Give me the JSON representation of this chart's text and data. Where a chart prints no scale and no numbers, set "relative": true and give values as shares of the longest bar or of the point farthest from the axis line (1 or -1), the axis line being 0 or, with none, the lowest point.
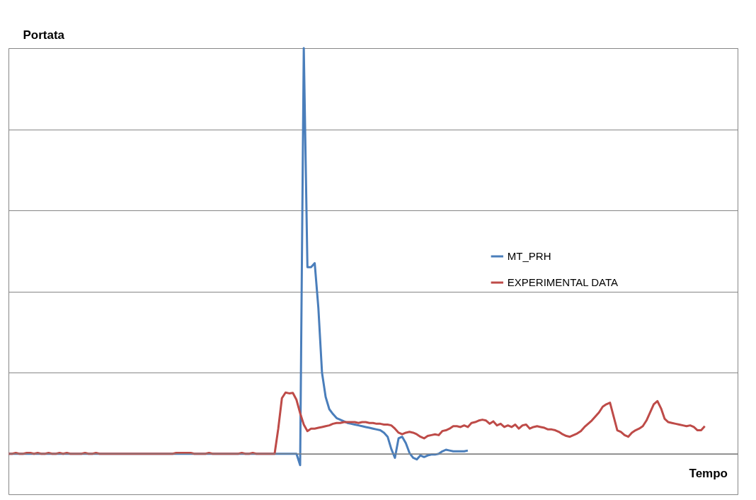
{
  "chart_data": {
    "type": "line",
    "relative": true,
    "xlabel": "Tempo",
    "ylabel": "Portata",
    "grid": "y",
    "legend": "right",
    "categories": [
      null,
      null,
      null,
      null,
      null,
      null,
      null,
      null,
      null,
      null,
      null,
      null,
      null,
      null,
      null,
      null,
      null,
      null,
      null,
      null,
      null,
      null,
      null,
      null,
      null,
      null,
      null,
      null,
      null,
      null,
      null,
      null,
      null,
      null,
      null,
      null,
      null,
      null,
      null,
      null,
      null,
      null,
      null,
      null,
      null,
      null,
      null,
      null,
      null,
      null,
      null,
      null,
      null,
      null,
      null,
      null,
      null,
      null,
      null,
      null,
      null,
      null,
      null,
      null,
      null,
      null,
      null,
      null,
      null,
      null,
      null,
      null,
      null,
      null,
      null,
      null,
      null,
      null,
      null,
      null,
      null,
      null,
      null,
      null,
      null,
      null,
      null,
      null,
      null,
      null,
      null,
      null,
      null,
      null,
      null,
      null,
      null,
      null,
      null,
      null,
      null,
      null,
      null,
      null,
      null,
      null,
      null,
      null,
      null,
      null,
      null,
      null,
      null,
      null,
      null,
      null,
      null,
      null,
      null,
      null,
      null,
      null,
      null,
      null,
      null,
      null,
      null,
      null,
      null,
      null,
      null,
      null,
      null,
      null,
      null,
      null,
      null,
      null,
      null,
      null,
      null,
      null,
      null,
      null,
      null,
      null,
      null,
      null,
      null,
      null,
      null,
      null,
      null,
      null,
      null,
      null,
      null,
      null,
      null,
      null,
      null,
      null,
      null,
      null,
      null,
      null,
      null,
      null,
      null,
      null,
      null,
      null,
      null,
      null,
      null,
      null,
      null,
      null,
      null,
      null,
      null,
      null,
      null,
      null,
      null,
      null,
      null,
      null,
      null,
      null,
      null,
      null,
      null,
      null,
      null,
      null,
      null,
      null,
      null,
      null,
      null
    ],
    "series": [
      {
        "name": "MT_PRH",
        "color": "#4a7ebb",
        "values": [
          0,
          0,
          0,
          0,
          0,
          0,
          0,
          0,
          0,
          0,
          0,
          0,
          0,
          0,
          0,
          0,
          0,
          0,
          0,
          0,
          0,
          0,
          0,
          0,
          0,
          0,
          0,
          0,
          0,
          0,
          0,
          0,
          0,
          0,
          0,
          0,
          0,
          0,
          0,
          0,
          0,
          0,
          0,
          0,
          0,
          0,
          0,
          0,
          0,
          0,
          0,
          0,
          0,
          0,
          0,
          0,
          0,
          0,
          0,
          0,
          0,
          0,
          0,
          0,
          0,
          0,
          0,
          0,
          0,
          0,
          0,
          0,
          0,
          0,
          0,
          0,
          0,
          0,
          0,
          0,
          -0.028,
          1,
          0.46,
          0.46,
          0.47,
          0.36,
          0.2,
          0.14,
          0.11,
          0.098,
          0.088,
          0.084,
          0.08,
          0.076,
          0.074,
          0.072,
          0.07,
          0.068,
          0.066,
          0.064,
          0.062,
          0.06,
          0.058,
          0.052,
          0.042,
          0.012,
          -0.01,
          0.038,
          0.042,
          0.026,
          0.002,
          -0.01,
          -0.014,
          -0.004,
          -0.008,
          -0.004,
          -0.002,
          -0.002,
          0,
          0.006,
          0.01,
          0.008,
          0.006,
          0.006,
          0.006,
          0.006,
          0.008,
          null,
          null,
          null,
          null,
          null,
          null,
          null,
          null,
          null,
          null,
          null,
          null,
          null,
          null,
          null,
          null,
          null,
          null,
          null,
          null,
          null,
          null,
          null,
          null,
          null,
          null,
          null,
          null,
          null,
          null,
          null,
          null,
          null,
          null,
          null,
          null,
          null,
          null,
          null,
          null,
          null,
          null,
          null,
          null,
          null,
          null,
          null,
          null,
          null,
          null,
          null,
          null,
          null,
          null,
          null,
          null,
          null,
          null,
          null,
          null,
          null,
          null,
          null,
          null,
          null,
          null,
          null,
          null,
          null,
          null,
          null,
          null,
          null,
          null
        ]
      },
      {
        "name": "EXPERIMENTAL DATA",
        "color": "#be4b48",
        "values": [
          0,
          0,
          0.002,
          0,
          0,
          0.002,
          0.002,
          0,
          0.002,
          0,
          0,
          0.002,
          0,
          0,
          0.002,
          0,
          0.002,
          0,
          0,
          0,
          0,
          0.002,
          0,
          0,
          0.002,
          0,
          0,
          0,
          0,
          0,
          0,
          0,
          0,
          0,
          0,
          0,
          0,
          0,
          0,
          0,
          0,
          0,
          0,
          0,
          0,
          0,
          0.002,
          0.002,
          0.002,
          0.002,
          0.002,
          0,
          0,
          0,
          0,
          0.002,
          0,
          0,
          0,
          0,
          0,
          0,
          0,
          0,
          0.002,
          0,
          0,
          0.002,
          0,
          0,
          0,
          0,
          0,
          0,
          0.062,
          0.137,
          0.151,
          0.149,
          0.15,
          0.133,
          0.1,
          0.072,
          0.056,
          0.062,
          0.062,
          0.064,
          0.066,
          0.068,
          0.07,
          0.074,
          0.076,
          0.076,
          0.078,
          0.078,
          0.078,
          0.078,
          0.076,
          0.078,
          0.078,
          0.076,
          0.076,
          0.074,
          0.074,
          0.072,
          0.072,
          0.07,
          0.062,
          0.052,
          0.048,
          0.052,
          0.054,
          0.052,
          0.048,
          0.042,
          0.038,
          0.044,
          0.046,
          0.048,
          0.046,
          0.056,
          0.058,
          0.062,
          0.068,
          0.068,
          0.066,
          0.07,
          0.066,
          0.076,
          0.078,
          0.082,
          0.084,
          0.082,
          0.074,
          0.08,
          0.07,
          0.074,
          0.066,
          0.07,
          0.066,
          0.072,
          0.062,
          0.07,
          0.072,
          0.062,
          0.066,
          0.068,
          0.066,
          0.064,
          0.06,
          0.06,
          0.058,
          0.054,
          0.048,
          0.044,
          0.042,
          0.046,
          0.05,
          0.056,
          0.066,
          0.074,
          0.082,
          0.092,
          0.102,
          0.116,
          0.122,
          0.126,
          0.092,
          0.058,
          0.054,
          0.046,
          0.042,
          0.052,
          0.058,
          0.062,
          0.068,
          0.082,
          0.102,
          0.122,
          0.13,
          0.112,
          0.086,
          0.078,
          0.076,
          0.074,
          0.072,
          0.07,
          0.068,
          0.07,
          0.066,
          0.058,
          0.058,
          0.068,
          null,
          null,
          null,
          null,
          null,
          null,
          null,
          null,
          null
        ]
      }
    ]
  }
}
